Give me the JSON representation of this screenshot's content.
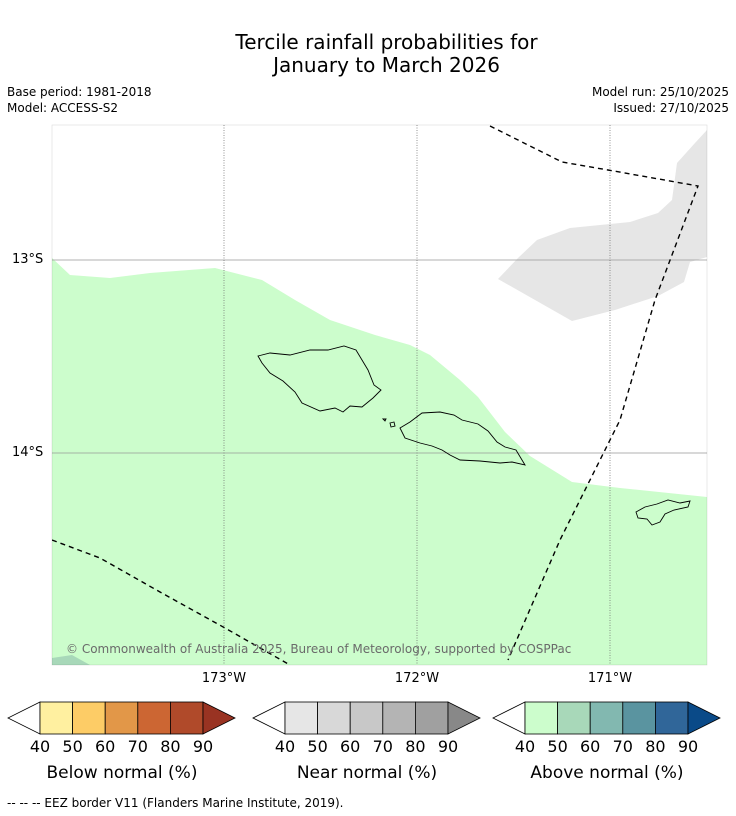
{
  "title_line1": "Tercile rainfall probabilities for",
  "title_line2": "January to March 2026",
  "meta": {
    "base_period": "Base period: 1981-2018",
    "model": "Model: ACCESS-S2",
    "model_run": "Model run: 25/10/2025",
    "issued": "Issued: 27/10/2025"
  },
  "map": {
    "lat_labels": [
      "13°S",
      "14°S"
    ],
    "lon_labels": [
      "173°W",
      "172°W",
      "171°W"
    ],
    "copyright": "© Commonwealth of Australia 2025, Bureau of Meteorology, supported by COSPPac",
    "colors": {
      "above_40_50": "#ccfdcc",
      "above_50_60": "#a8d8b9",
      "near_40_50": "#e6e6e6"
    }
  },
  "legends": [
    {
      "label": "Below normal (%)",
      "colors": [
        "#fff0a0",
        "#fdcc66",
        "#e29748",
        "#cc6633",
        "#b04a2a",
        "#993322"
      ]
    },
    {
      "label": "Near normal (%)",
      "colors": [
        "#e6e6e6",
        "#d8d8d8",
        "#c8c8c8",
        "#b4b4b4",
        "#a0a0a0",
        "#888888"
      ]
    },
    {
      "label": "Above normal (%)",
      "colors": [
        "#ccfdcc",
        "#a8d8b9",
        "#82b8b0",
        "#5a94a0",
        "#306699",
        "#0a4a88"
      ]
    }
  ],
  "legend_ticks": [
    "40",
    "50",
    "60",
    "70",
    "80",
    "90"
  ],
  "footnote": "-- -- -- EEZ border V11 (Flanders Marine Institute, 2019)."
}
